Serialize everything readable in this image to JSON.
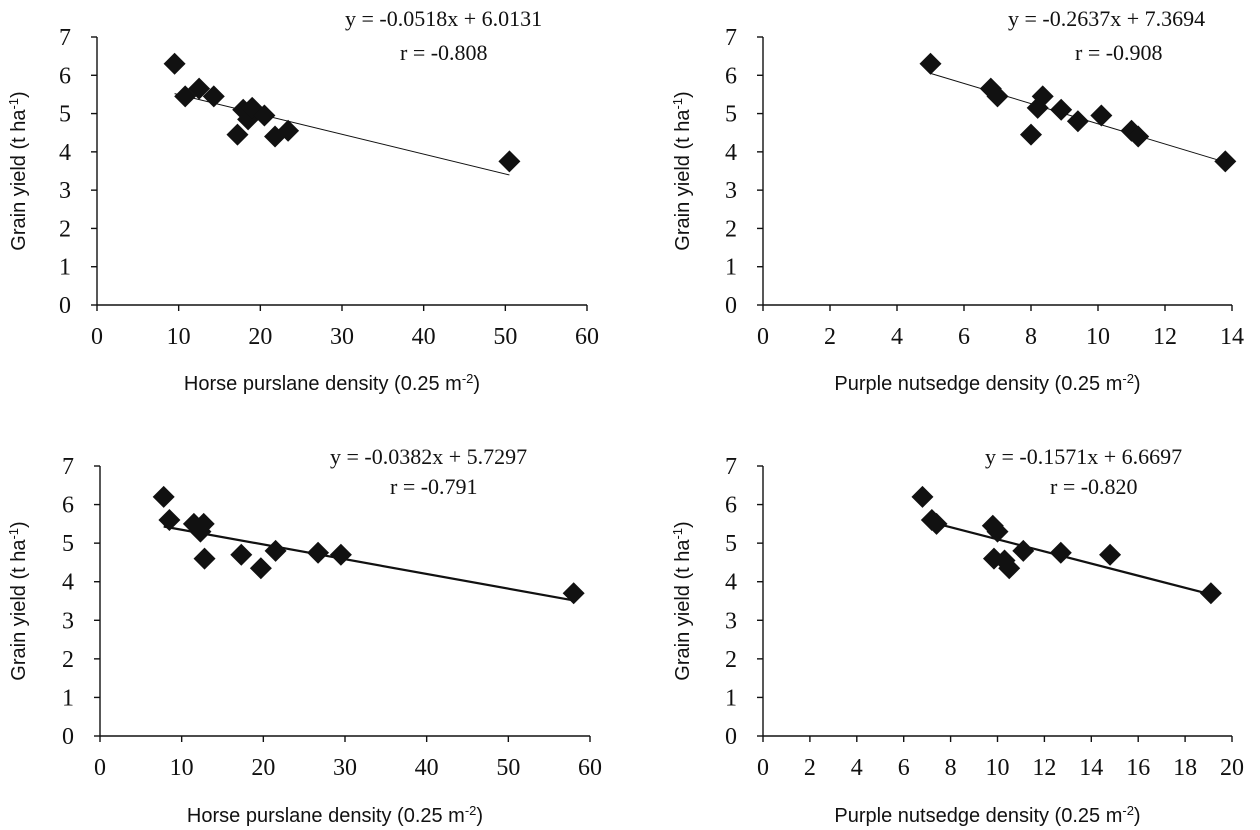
{
  "chart_data": [
    {
      "type": "scatter",
      "xlabel": "Horse purslane density (0.25 m-2)",
      "ylabel": "Grain yield (t ha-1)",
      "xlim": [
        0,
        60
      ],
      "ylim": [
        0,
        7
      ],
      "xticks": [
        "0",
        "10",
        "20",
        "30",
        "40",
        "50",
        "60"
      ],
      "yticks": [
        "0",
        "1",
        "2",
        "3",
        "4",
        "5",
        "6",
        "7"
      ],
      "equation": "y = -0.0518x + 6.0131",
      "r_label": "r = -0.808",
      "trendline": {
        "slope": -0.0518,
        "intercept": 6.0131,
        "x_range": [
          9.5,
          50.5
        ]
      },
      "points": [
        [
          9.5,
          6.3
        ],
        [
          10.8,
          5.45
        ],
        [
          12.5,
          5.65
        ],
        [
          14.3,
          5.45
        ],
        [
          17.2,
          4.45
        ],
        [
          17.9,
          5.1
        ],
        [
          18.5,
          4.85
        ],
        [
          19.0,
          5.15
        ],
        [
          20.5,
          4.95
        ],
        [
          21.8,
          4.4
        ],
        [
          23.4,
          4.55
        ],
        [
          50.5,
          3.75
        ]
      ]
    },
    {
      "type": "scatter",
      "xlabel": "Purple nutsedge density (0.25 m-2)",
      "ylabel": "Grain yield (t ha-1)",
      "xlim": [
        0,
        14
      ],
      "ylim": [
        0,
        7
      ],
      "xticks": [
        "0",
        "2",
        "4",
        "6",
        "8",
        "10",
        "12",
        "14"
      ],
      "yticks": [
        "0",
        "1",
        "2",
        "3",
        "4",
        "5",
        "6",
        "7"
      ],
      "equation": "y = -0.2637x + 7.3694",
      "r_label": "r = -0.908",
      "trendline": {
        "slope": -0.2637,
        "intercept": 7.3694,
        "x_range": [
          5.0,
          13.8
        ]
      },
      "points": [
        [
          5.0,
          6.3
        ],
        [
          6.8,
          5.65
        ],
        [
          7.0,
          5.45
        ],
        [
          8.0,
          4.45
        ],
        [
          8.2,
          5.15
        ],
        [
          8.35,
          5.45
        ],
        [
          8.9,
          5.1
        ],
        [
          9.4,
          4.8
        ],
        [
          10.1,
          4.95
        ],
        [
          11.0,
          4.55
        ],
        [
          11.2,
          4.4
        ],
        [
          13.8,
          3.75
        ]
      ]
    },
    {
      "type": "scatter",
      "xlabel": "Horse purslane density (0.25 m-2)",
      "ylabel": "Grain yield (t ha-1)",
      "xlim": [
        0,
        60
      ],
      "ylim": [
        0,
        7
      ],
      "xticks": [
        "0",
        "10",
        "20",
        "30",
        "40",
        "50",
        "60"
      ],
      "yticks": [
        "0",
        "1",
        "2",
        "3",
        "4",
        "5",
        "6",
        "7"
      ],
      "equation": "y = -0.0382x + 5.7297",
      "r_label": "r = -0.791",
      "trendline": {
        "slope": -0.0382,
        "intercept": 5.7297,
        "x_range": [
          7.8,
          58.0
        ]
      },
      "points": [
        [
          7.8,
          6.2
        ],
        [
          8.5,
          5.6
        ],
        [
          11.5,
          5.5
        ],
        [
          12.3,
          5.3
        ],
        [
          12.7,
          5.5
        ],
        [
          12.8,
          4.6
        ],
        [
          17.3,
          4.7
        ],
        [
          19.7,
          4.35
        ],
        [
          21.5,
          4.8
        ],
        [
          26.7,
          4.75
        ],
        [
          29.5,
          4.7
        ],
        [
          58.0,
          3.7
        ]
      ]
    },
    {
      "type": "scatter",
      "xlabel": "Purple nutsedge density (0.25 m-2)",
      "ylabel": "Grain yield (t ha-1)",
      "xlim": [
        0,
        20
      ],
      "ylim": [
        0,
        7
      ],
      "xticks": [
        "0",
        "2",
        "4",
        "6",
        "8",
        "10",
        "12",
        "14",
        "16",
        "18",
        "20"
      ],
      "yticks": [
        "0",
        "1",
        "2",
        "3",
        "4",
        "5",
        "6",
        "7"
      ],
      "equation": "y = -0.1571x + 6.6697",
      "r_label": "r = -0.820",
      "trendline": {
        "slope": -0.1571,
        "intercept": 6.6697,
        "x_range": [
          6.8,
          19.1
        ]
      },
      "points": [
        [
          6.8,
          6.2
        ],
        [
          7.2,
          5.6
        ],
        [
          7.4,
          5.5
        ],
        [
          9.8,
          5.45
        ],
        [
          9.85,
          4.6
        ],
        [
          10.0,
          5.3
        ],
        [
          10.3,
          4.55
        ],
        [
          10.5,
          4.35
        ],
        [
          11.1,
          4.8
        ],
        [
          12.7,
          4.75
        ],
        [
          14.8,
          4.7
        ],
        [
          19.1,
          3.7
        ]
      ]
    }
  ]
}
